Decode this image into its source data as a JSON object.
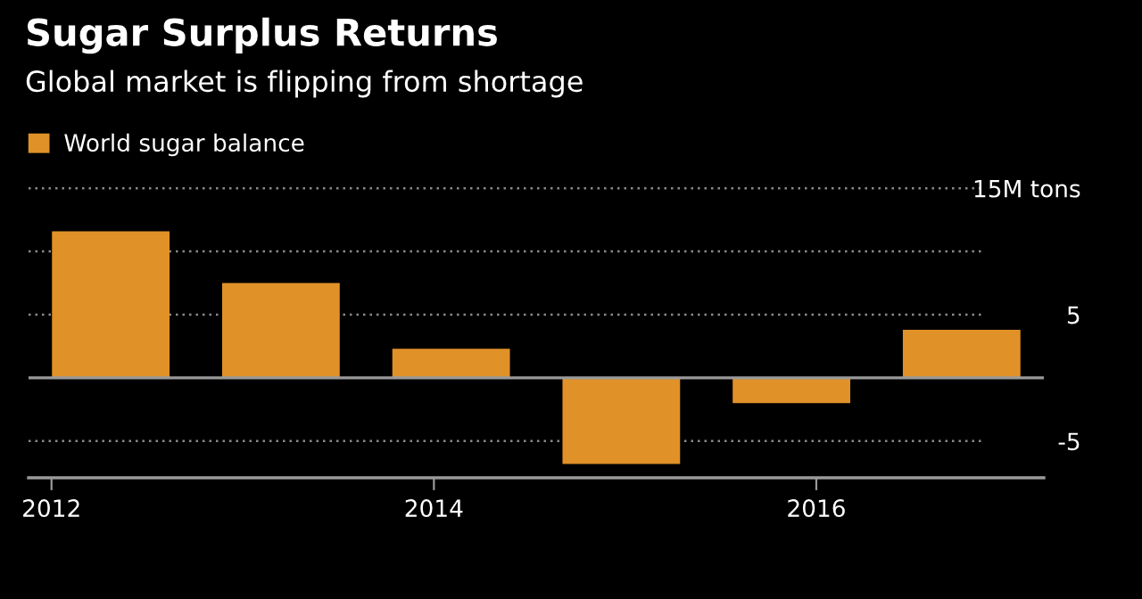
{
  "chart_data": {
    "type": "bar",
    "title": "Sugar Surplus Returns",
    "subtitle": "Global market is flipping from shortage",
    "x": [
      2012.31,
      2013.2,
      2014.09,
      2014.98,
      2015.87,
      2016.76
    ],
    "series": [
      {
        "name": "World sugar balance",
        "color": "#e09128",
        "values": [
          11.6,
          7.5,
          2.3,
          -6.8,
          -2.0,
          3.8
        ]
      }
    ],
    "xlim": [
      2011.88,
      2017.19
    ],
    "xticks": [
      2012,
      2014,
      2016
    ],
    "ylim": [
      -7.9,
      15
    ],
    "yticks": [
      {
        "value": 15,
        "label": "15M tons"
      },
      {
        "value": 10,
        "label": null
      },
      5,
      {
        "value": 0,
        "label": null
      },
      -5
    ],
    "grid": "y",
    "legend": "top left"
  }
}
